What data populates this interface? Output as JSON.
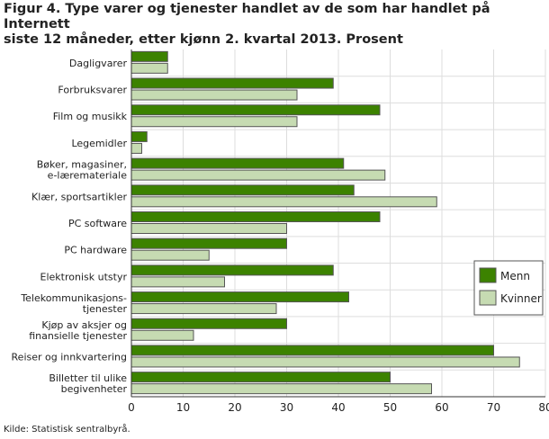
{
  "title_line1": "Figur 4. Type varer og tjenester handlet av de som har handlet på Internett",
  "title_line2": "siste 12 måneder, etter kjønn 2. kvartal 2013. Prosent",
  "source": "Kilde: Statistisk sentralbyrå.",
  "chart_data": {
    "type": "bar",
    "orientation": "horizontal",
    "categories": [
      [
        "Dagligvarer"
      ],
      [
        "Forbruksvarer"
      ],
      [
        "Film og musikk"
      ],
      [
        "Legemidler"
      ],
      [
        "Bøker, magasiner,",
        "e-læremateriale"
      ],
      [
        "Klær, sportsartikler"
      ],
      [
        "PC software"
      ],
      [
        "PC hardware"
      ],
      [
        "Elektronisk utstyr"
      ],
      [
        "Telekommunikasjons-",
        "tjenester"
      ],
      [
        "Kjøp av aksjer og",
        "finansielle tjenester"
      ],
      [
        "Reiser og innkvartering"
      ],
      [
        "Billetter til ulike",
        "begivenheter"
      ]
    ],
    "series": [
      {
        "name": "Menn",
        "color": "#3c8200",
        "values": [
          7,
          39,
          48,
          3,
          41,
          43,
          48,
          30,
          39,
          42,
          30,
          70,
          50
        ]
      },
      {
        "name": "Kvinner",
        "color": "#c6dbb2",
        "values": [
          7,
          32,
          32,
          2,
          49,
          59,
          30,
          15,
          18,
          28,
          12,
          75,
          58
        ]
      }
    ],
    "xlim": [
      0,
      80
    ],
    "xticks": [
      0,
      10,
      20,
      30,
      40,
      50,
      60,
      70,
      80
    ],
    "grid": true,
    "legend": "right"
  }
}
